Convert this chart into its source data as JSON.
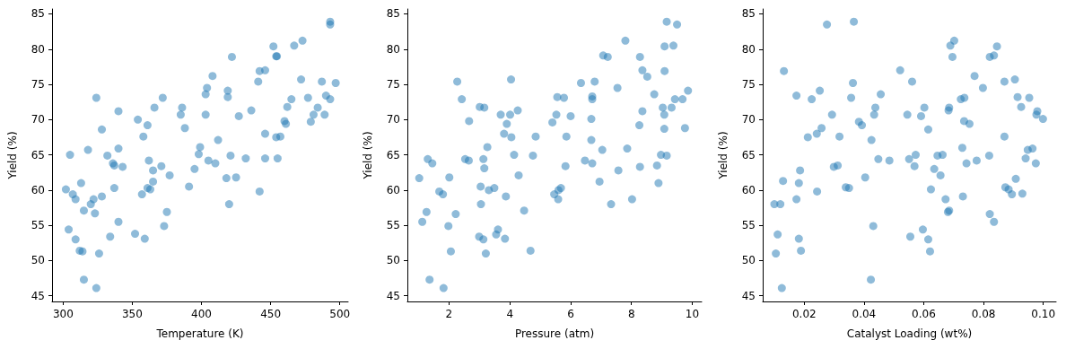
{
  "chart_data": [
    {
      "type": "scatter",
      "xlabel": "Temperature (K)",
      "ylabel": "Yield (%)",
      "color": "#1f77b4",
      "marker": "circle",
      "grid": false,
      "xlim": [
        292,
        506
      ],
      "ylim": [
        44.2,
        85.7
      ],
      "xticks": [
        300,
        350,
        400,
        450,
        500
      ],
      "yticks": [
        45,
        50,
        55,
        60,
        65,
        70,
        75,
        80,
        85
      ],
      "x": [
        493,
        493,
        452,
        467,
        473,
        454,
        454.5,
        422,
        442,
        446,
        408,
        441,
        472,
        487,
        497,
        404,
        403,
        419,
        419,
        324,
        372,
        465,
        477,
        490,
        493,
        462,
        484,
        366,
        386,
        385,
        340,
        403,
        427,
        436,
        481,
        489,
        354,
        460,
        461,
        479,
        361,
        388,
        328,
        358,
        446,
        454,
        457,
        412,
        399,
        305,
        318,
        332,
        340,
        336,
        337,
        343,
        398,
        421,
        432,
        446,
        455,
        362,
        405,
        410,
        371,
        365,
        395,
        377,
        365,
        313,
        418,
        425,
        302,
        337,
        361,
        363,
        391,
        307,
        309,
        322,
        320,
        328,
        357,
        442,
        315,
        323,
        420,
        375,
        340,
        373,
        304,
        309,
        334,
        352,
        359,
        312,
        314,
        326,
        315,
        324
      ],
      "values": [
        83.9,
        83.5,
        80.4,
        80.5,
        81.2,
        79.0,
        79.0,
        78.9,
        76.9,
        77.0,
        76.2,
        75.4,
        75.7,
        75.4,
        75.2,
        74.5,
        73.6,
        74.1,
        73.2,
        73.1,
        73.1,
        72.9,
        73.1,
        73.4,
        72.9,
        71.8,
        71.7,
        71.7,
        71.7,
        70.7,
        71.2,
        70.7,
        70.5,
        71.3,
        70.7,
        70.7,
        70.0,
        69.8,
        69.4,
        69.7,
        69.2,
        68.8,
        68.6,
        67.6,
        68.0,
        67.5,
        67.6,
        67.1,
        66.1,
        65.0,
        65.7,
        64.9,
        65.9,
        63.8,
        63.5,
        63.3,
        65.1,
        64.9,
        64.5,
        64.5,
        64.5,
        64.2,
        64.2,
        63.8,
        63.4,
        62.8,
        63.0,
        62.1,
        61.2,
        61.0,
        61.7,
        61.8,
        60.1,
        60.3,
        60.3,
        60.1,
        60.5,
        59.4,
        58.7,
        58.7,
        58.0,
        59.1,
        59.4,
        59.8,
        57.1,
        56.7,
        58.0,
        56.9,
        55.5,
        54.9,
        54.4,
        53.0,
        53.4,
        53.8,
        53.1,
        51.4,
        51.3,
        51.0,
        47.3,
        46.1
      ]
    },
    {
      "type": "scatter",
      "xlabel": "Pressure (atm)",
      "ylabel": "Yield (%)",
      "color": "#1f77b4",
      "marker": "circle",
      "grid": false,
      "xlim": [
        0.63,
        10.31
      ],
      "ylim": [
        44.2,
        85.7
      ],
      "xticks": [
        2,
        4,
        6,
        8,
        10
      ],
      "yticks": [
        45,
        50,
        55,
        60,
        65,
        70,
        75,
        80,
        85
      ],
      "x": [
        9.16,
        9.5,
        7.8,
        9.09,
        9.38,
        7.07,
        7.22,
        8.28,
        2.27,
        4.04,
        8.36,
        8.52,
        9.09,
        7.54,
        6.34,
        6.79,
        8.75,
        9.86,
        2.42,
        5.56,
        5.78,
        6.71,
        6.71,
        9.43,
        9.68,
        3.01,
        3.16,
        3.7,
        4.01,
        4.26,
        9.03,
        9.32,
        9.08,
        8.36,
        2.66,
        3.9,
        5.53,
        5.4,
        6.0,
        6.68,
        8.26,
        9.08,
        9.76,
        3.81,
        4.05,
        4.85,
        5.86,
        6.68,
        3.26,
        2.53,
        2.65,
        3.13,
        3.16,
        4.14,
        4.76,
        7.04,
        7.86,
        6.47,
        6.71,
        5.83,
        7.57,
        8.28,
        8.84,
        8.97,
        9.16,
        1.3,
        1.45,
        1.02,
        2.01,
        4.29,
        6.95,
        8.89,
        1.68,
        1.8,
        3.04,
        3.31,
        3.49,
        3.87,
        5.46,
        5.6,
        5.68,
        5.59,
        3.05,
        7.33,
        8.02,
        1.26,
        1.12,
        2.22,
        4.47,
        1.98,
        3.61,
        3.55,
        2.99,
        3.13,
        3.84,
        2.06,
        3.21,
        4.68,
        1.36,
        1.82
      ],
      "values": [
        83.9,
        83.5,
        81.2,
        80.4,
        80.5,
        79.1,
        78.9,
        78.9,
        75.4,
        75.7,
        77.0,
        76.1,
        76.9,
        74.5,
        75.2,
        75.4,
        73.6,
        74.1,
        72.9,
        73.2,
        73.1,
        73.3,
        72.9,
        72.9,
        72.9,
        71.8,
        71.7,
        70.7,
        70.7,
        71.3,
        71.7,
        71.7,
        70.7,
        71.2,
        69.8,
        69.4,
        70.7,
        69.6,
        70.5,
        70.1,
        69.2,
        68.7,
        68.8,
        68.0,
        67.5,
        67.6,
        67.6,
        67.1,
        66.1,
        64.4,
        64.2,
        64.4,
        63.1,
        65.0,
        64.9,
        65.7,
        65.9,
        64.2,
        63.8,
        63.4,
        62.8,
        63.3,
        63.5,
        65.0,
        64.9,
        64.4,
        63.8,
        61.7,
        61.8,
        62.1,
        61.2,
        61.0,
        59.8,
        59.4,
        60.5,
        60.0,
        60.3,
        59.1,
        59.4,
        60.0,
        60.3,
        58.7,
        58.0,
        58.0,
        58.7,
        56.9,
        55.5,
        56.6,
        57.1,
        54.9,
        54.4,
        53.7,
        53.4,
        53.0,
        53.1,
        51.3,
        51.0,
        51.4,
        47.3,
        46.1
      ]
    },
    {
      "type": "scatter",
      "xlabel": "Catalyst Loading (wt%)",
      "ylabel": "Yield (%)",
      "color": "#1f77b4",
      "marker": "circle",
      "grid": false,
      "xlim": [
        0.0061,
        0.1043
      ],
      "ylim": [
        44.2,
        85.7
      ],
      "xticks": [
        0.02,
        0.04,
        0.06,
        0.08,
        {
          "value": 0.1,
          "label": "0.10"
        }
      ],
      "yticks": [
        45,
        50,
        55,
        60,
        65,
        70,
        75,
        80,
        85
      ],
      "x": [
        0.0276,
        0.0366,
        0.0689,
        0.0702,
        0.0696,
        0.0821,
        0.0835,
        0.0845,
        0.0132,
        0.0521,
        0.077,
        0.0905,
        0.0363,
        0.0561,
        0.087,
        0.0798,
        0.0252,
        0.0174,
        0.0225,
        0.0357,
        0.0456,
        0.0724,
        0.0736,
        0.0914,
        0.0953,
        0.0438,
        0.0434,
        0.0602,
        0.0685,
        0.0683,
        0.0926,
        0.098,
        0.0977,
        0.0999,
        0.0293,
        0.0545,
        0.0591,
        0.0383,
        0.0393,
        0.0735,
        0.0753,
        0.0258,
        0.0242,
        0.0212,
        0.0318,
        0.0425,
        0.0615,
        0.087,
        0.0729,
        0.0964,
        0.0948,
        0.0941,
        0.0975,
        0.0819,
        0.0777,
        0.0743,
        0.0646,
        0.0663,
        0.0573,
        0.0551,
        0.0569,
        0.0448,
        0.0485,
        0.0299,
        0.0312,
        0.0186,
        0.0635,
        0.0656,
        0.0404,
        0.0129,
        0.0182,
        0.0339,
        0.035,
        0.0243,
        0.0624,
        0.0908,
        0.0873,
        0.0884,
        0.0895,
        0.093,
        0.0731,
        0.0673,
        0.01,
        0.012,
        0.0174,
        0.0681,
        0.0685,
        0.0821,
        0.0835,
        0.0431,
        0.0597,
        0.0555,
        0.0615,
        0.0621,
        0.0111,
        0.0105,
        0.0182,
        0.0189,
        0.0423,
        0.0125
      ],
      "values": [
        83.5,
        83.9,
        80.5,
        81.2,
        78.9,
        78.9,
        79.1,
        80.4,
        76.9,
        77.0,
        76.2,
        75.7,
        75.2,
        75.4,
        75.4,
        74.5,
        74.1,
        73.4,
        72.9,
        73.1,
        73.6,
        72.9,
        73.1,
        73.2,
        73.1,
        71.7,
        70.7,
        71.7,
        71.7,
        71.3,
        71.8,
        71.2,
        70.7,
        70.1,
        70.7,
        70.7,
        70.5,
        69.7,
        69.2,
        69.8,
        69.4,
        68.8,
        68.0,
        67.5,
        67.6,
        67.1,
        68.6,
        67.6,
        66.0,
        65.9,
        65.7,
        64.5,
        63.8,
        64.9,
        64.2,
        63.8,
        64.9,
        65.0,
        65.0,
        64.4,
        63.4,
        64.4,
        64.2,
        63.3,
        63.5,
        62.8,
        63.0,
        62.1,
        61.8,
        61.3,
        61.0,
        60.4,
        60.3,
        59.8,
        60.1,
        61.6,
        60.4,
        60.1,
        59.4,
        59.5,
        59.1,
        58.7,
        58.0,
        58.0,
        58.7,
        56.9,
        57.1,
        56.6,
        55.5,
        54.9,
        54.4,
        53.4,
        53.0,
        51.3,
        53.7,
        51.0,
        53.1,
        51.4,
        47.3,
        46.1
      ]
    }
  ]
}
